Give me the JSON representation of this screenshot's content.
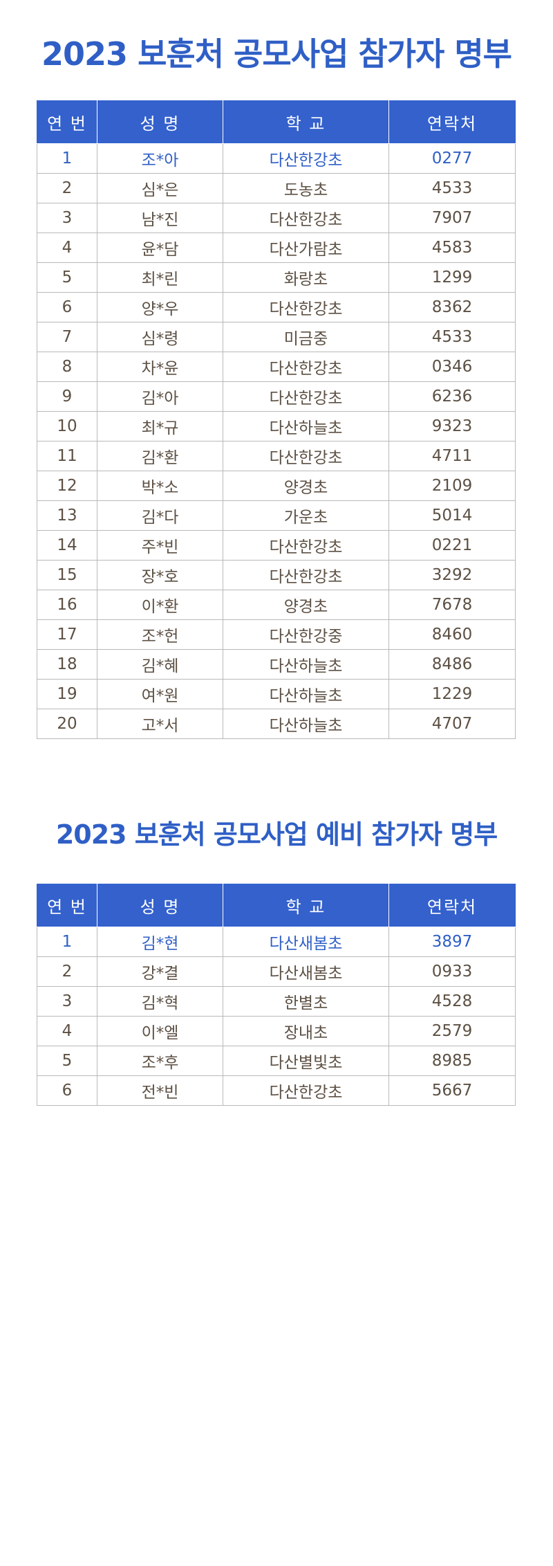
{
  "main": {
    "title": "2023 보훈처 공모사업 참가자 명부",
    "headers": [
      "연 번",
      "성 명",
      "학 교",
      "연락처"
    ],
    "rows": [
      [
        "1",
        "조*아",
        "다산한강초",
        "0277"
      ],
      [
        "2",
        "심*은",
        "도농초",
        "4533"
      ],
      [
        "3",
        "남*진",
        "다산한강초",
        "7907"
      ],
      [
        "4",
        "윤*담",
        "다산가람초",
        "4583"
      ],
      [
        "5",
        "최*린",
        "화랑초",
        "1299"
      ],
      [
        "6",
        "양*우",
        "다산한강초",
        "8362"
      ],
      [
        "7",
        "심*령",
        "미금중",
        "4533"
      ],
      [
        "8",
        "차*윤",
        "다산한강초",
        "0346"
      ],
      [
        "9",
        "김*아",
        "다산한강초",
        "6236"
      ],
      [
        "10",
        "최*규",
        "다산하늘초",
        "9323"
      ],
      [
        "11",
        "김*환",
        "다산한강초",
        "4711"
      ],
      [
        "12",
        "박*소",
        "양경초",
        "2109"
      ],
      [
        "13",
        "김*다",
        "가운초",
        "5014"
      ],
      [
        "14",
        "주*빈",
        "다산한강초",
        "0221"
      ],
      [
        "15",
        "장*호",
        "다산한강초",
        "3292"
      ],
      [
        "16",
        "이*환",
        "양경초",
        "7678"
      ],
      [
        "17",
        "조*헌",
        "다산한강중",
        "8460"
      ],
      [
        "18",
        "김*혜",
        "다산하늘초",
        "8486"
      ],
      [
        "19",
        "여*원",
        "다산하늘초",
        "1229"
      ],
      [
        "20",
        "고*서",
        "다산하늘초",
        "4707"
      ]
    ]
  },
  "reserve": {
    "title": "2023 보훈처 공모사업 예비 참가자 명부",
    "headers": [
      "연 번",
      "성 명",
      "학 교",
      "연락처"
    ],
    "rows": [
      [
        "1",
        "김*현",
        "다산새봄초",
        "3897"
      ],
      [
        "2",
        "강*결",
        "다산새봄초",
        "0933"
      ],
      [
        "3",
        "김*혁",
        "한별초",
        "4528"
      ],
      [
        "4",
        "이*엘",
        "장내초",
        "2579"
      ],
      [
        "5",
        "조*후",
        "다산별빛초",
        "8985"
      ],
      [
        "6",
        "전*빈",
        "다산한강초",
        "5667"
      ]
    ]
  },
  "colors": {
    "title": "#2f5fc6",
    "header_bg": "#3461cc",
    "header_text": "#ffffff",
    "first_row_text": "#2f5fc6",
    "body_text": "#5c5043",
    "border": "#b9b9b9"
  }
}
